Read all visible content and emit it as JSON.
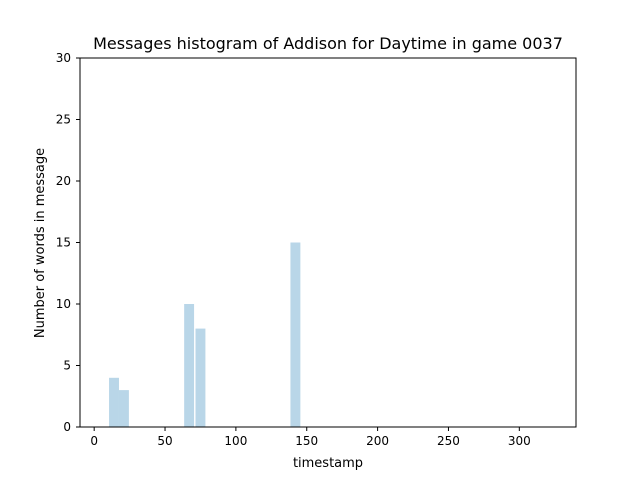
{
  "chart_data": {
    "type": "bar",
    "title": "Messages histogram of Addison for Daytime in game 0037",
    "xlabel": "timestamp",
    "ylabel": "Number of words in message",
    "xlim": [
      -10,
      340
    ],
    "ylim": [
      0,
      30
    ],
    "xticks": [
      0,
      50,
      100,
      150,
      200,
      250,
      300
    ],
    "yticks": [
      0,
      5,
      10,
      15,
      20,
      25,
      30
    ],
    "bar_width": 7,
    "bar_color": "#b9d6e8",
    "grid": false,
    "series": [
      {
        "x": [
          14,
          21,
          67,
          75,
          142
        ],
        "values": [
          4,
          3,
          10,
          8,
          15
        ]
      }
    ]
  }
}
